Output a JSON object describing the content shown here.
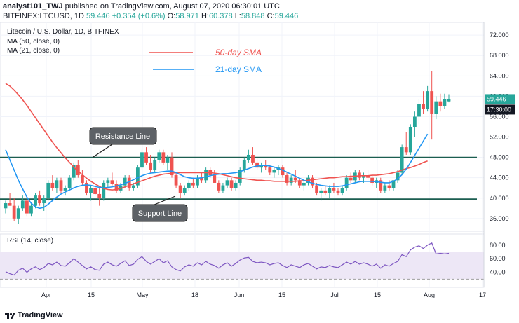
{
  "header": {
    "line1_author": "analyst101_TWJ",
    "line1_text": "published on TradingView.com, August 07, 2020 06:30:01 UTC",
    "symbol": "BITFINEX:LTCUSD, 1D",
    "last": "59.446",
    "change": "+0.354 (+0.6%)",
    "o_label": "O:",
    "o": "58.971",
    "h_label": "H:",
    "h": "60.378",
    "l_label": "L:",
    "l": "58.848",
    "c_label": "C:",
    "c": "59.446"
  },
  "legend": {
    "title": "Litecoin / U.S. Dollar, 1D, BITFINEX",
    "ma50": "MA (50, close, 0)",
    "ma21": "MA (21, close, 0)",
    "sma50_label": "50-day SMA",
    "sma21_label": "21-day SMA",
    "rsi": "RSI (14, close)"
  },
  "annotations": {
    "resistance": "Resistance Line",
    "support": "Support Line"
  },
  "price_badges": {
    "last": "59.446",
    "timer": "17:30:00"
  },
  "footer": {
    "brand": "TradingView"
  },
  "colors": {
    "up": "#26a69a",
    "down": "#ef5350",
    "sma50": "#ef5350",
    "sma21": "#2196f3",
    "level": "#1b5e50",
    "rsi_line": "#7e57c2",
    "rsi_band": "#ede7f6",
    "badge_last": "#26a69a",
    "badge_timer": "#131722"
  },
  "chart_data": {
    "type": "candlestick",
    "price_axis": [
      "72.000",
      "68.000",
      "64.000",
      "60.000",
      "56.000",
      "52.000",
      "48.000",
      "44.000",
      "40.000",
      "36.000"
    ],
    "price_ticks": [
      72,
      68,
      64,
      60,
      56,
      52,
      48,
      44,
      40,
      36
    ],
    "ylim": [
      33.5,
      74.5
    ],
    "time_axis": [
      "Apr",
      "15",
      "May",
      "18",
      "Jun",
      "15",
      "Jul",
      "15",
      "Aug",
      "17"
    ],
    "time_axis_x": [
      66,
      130,
      203,
      278,
      341,
      402,
      477,
      538,
      612,
      688
    ],
    "levels": {
      "resistance": 48.0,
      "support": 39.8
    },
    "candles": [
      [
        38.0,
        39.5,
        37.0,
        39.0
      ],
      [
        39.0,
        41.0,
        38.5,
        38.5
      ],
      [
        38.5,
        40.0,
        35.5,
        36.0
      ],
      [
        36.0,
        38.5,
        35.0,
        38.0
      ],
      [
        38.0,
        40.5,
        37.5,
        39.5
      ],
      [
        39.5,
        40.0,
        36.5,
        37.0
      ],
      [
        37.0,
        39.0,
        36.5,
        38.5
      ],
      [
        38.5,
        41.0,
        38.0,
        40.5
      ],
      [
        40.5,
        41.5,
        38.5,
        39.0
      ],
      [
        39.0,
        40.5,
        37.5,
        40.0
      ],
      [
        40.0,
        43.5,
        39.5,
        43.0
      ],
      [
        43.0,
        44.5,
        41.5,
        42.0
      ],
      [
        42.0,
        44.0,
        41.0,
        43.5
      ],
      [
        43.5,
        44.0,
        41.0,
        41.5
      ],
      [
        41.5,
        42.5,
        40.5,
        42.0
      ],
      [
        42.0,
        44.5,
        41.5,
        44.0
      ],
      [
        44.0,
        47.0,
        43.5,
        46.5
      ],
      [
        46.5,
        47.5,
        44.0,
        44.5
      ],
      [
        44.5,
        45.5,
        42.5,
        43.0
      ],
      [
        43.0,
        43.5,
        40.5,
        41.0
      ],
      [
        41.0,
        42.5,
        39.5,
        42.0
      ],
      [
        42.0,
        43.0,
        40.5,
        40.8
      ],
      [
        40.8,
        42.0,
        38.5,
        40.0
      ],
      [
        40.0,
        43.5,
        39.5,
        43.0
      ],
      [
        43.0,
        44.0,
        42.0,
        43.5
      ],
      [
        43.5,
        45.0,
        42.5,
        42.8
      ],
      [
        42.8,
        43.5,
        41.0,
        41.5
      ],
      [
        41.5,
        43.0,
        41.0,
        42.5
      ],
      [
        42.5,
        44.5,
        42.0,
        44.0
      ],
      [
        44.0,
        44.5,
        41.5,
        42.0
      ],
      [
        42.0,
        43.0,
        41.5,
        42.5
      ],
      [
        42.5,
        46.5,
        42.0,
        46.0
      ],
      [
        46.0,
        49.5,
        45.5,
        49.0
      ],
      [
        49.0,
        50.0,
        46.5,
        47.0
      ],
      [
        47.0,
        48.5,
        45.0,
        45.5
      ],
      [
        45.5,
        48.0,
        45.0,
        47.5
      ],
      [
        47.5,
        49.5,
        47.0,
        49.0
      ],
      [
        49.0,
        49.5,
        46.5,
        47.0
      ],
      [
        47.0,
        48.5,
        45.5,
        48.0
      ],
      [
        48.0,
        49.0,
        44.0,
        44.5
      ],
      [
        44.5,
        45.0,
        42.0,
        42.5
      ],
      [
        42.5,
        43.0,
        40.0,
        41.0
      ],
      [
        41.0,
        42.5,
        40.5,
        42.0
      ],
      [
        42.0,
        43.5,
        41.5,
        43.0
      ],
      [
        43.0,
        44.0,
        42.0,
        42.5
      ],
      [
        42.5,
        44.5,
        42.0,
        44.0
      ],
      [
        44.0,
        45.0,
        43.0,
        43.5
      ],
      [
        43.5,
        46.0,
        43.0,
        45.5
      ],
      [
        45.5,
        46.0,
        44.0,
        44.5
      ],
      [
        44.5,
        45.5,
        43.0,
        43.0
      ],
      [
        43.0,
        43.5,
        41.0,
        41.5
      ],
      [
        41.5,
        43.0,
        41.0,
        42.5
      ],
      [
        42.5,
        44.0,
        42.0,
        43.5
      ],
      [
        43.5,
        44.0,
        41.5,
        42.0
      ],
      [
        42.0,
        43.5,
        41.5,
        43.0
      ],
      [
        43.0,
        46.0,
        42.5,
        45.5
      ],
      [
        45.5,
        48.0,
        45.0,
        47.5
      ],
      [
        47.5,
        49.5,
        47.0,
        48.5
      ],
      [
        48.5,
        50.0,
        46.5,
        47.0
      ],
      [
        47.0,
        48.0,
        45.5,
        46.0
      ],
      [
        46.0,
        47.0,
        45.0,
        46.5
      ],
      [
        46.5,
        47.5,
        45.5,
        46.0
      ],
      [
        46.0,
        46.5,
        44.5,
        45.0
      ],
      [
        45.0,
        46.0,
        44.0,
        45.5
      ],
      [
        45.5,
        46.5,
        44.5,
        46.0
      ],
      [
        46.0,
        46.5,
        44.0,
        44.5
      ],
      [
        44.5,
        45.0,
        42.5,
        43.0
      ],
      [
        43.0,
        44.5,
        42.5,
        44.0
      ],
      [
        44.0,
        45.5,
        43.0,
        43.5
      ],
      [
        43.5,
        44.0,
        42.0,
        42.5
      ],
      [
        42.5,
        43.5,
        41.5,
        43.0
      ],
      [
        43.0,
        44.5,
        42.5,
        44.0
      ],
      [
        44.0,
        44.5,
        42.0,
        42.5
      ],
      [
        42.5,
        43.0,
        40.5,
        41.0
      ],
      [
        41.0,
        42.0,
        39.5,
        41.5
      ],
      [
        41.5,
        42.5,
        40.5,
        41.0
      ],
      [
        41.0,
        42.5,
        40.0,
        42.0
      ],
      [
        42.0,
        43.0,
        41.0,
        41.5
      ],
      [
        41.5,
        42.0,
        40.5,
        41.0
      ],
      [
        41.0,
        42.5,
        40.5,
        42.0
      ],
      [
        42.0,
        44.5,
        41.5,
        44.0
      ],
      [
        44.0,
        45.0,
        43.0,
        43.5
      ],
      [
        43.5,
        45.5,
        43.0,
        45.0
      ],
      [
        45.0,
        45.5,
        43.5,
        44.0
      ],
      [
        44.0,
        45.0,
        43.0,
        44.5
      ],
      [
        44.5,
        45.5,
        43.5,
        44.0
      ],
      [
        44.0,
        44.5,
        42.5,
        43.0
      ],
      [
        43.0,
        44.0,
        42.0,
        43.5
      ],
      [
        43.5,
        44.0,
        41.0,
        41.5
      ],
      [
        41.5,
        43.0,
        41.0,
        42.5
      ],
      [
        42.5,
        43.5,
        41.5,
        42.0
      ],
      [
        42.0,
        43.5,
        41.5,
        43.5
      ],
      [
        43.5,
        45.5,
        43.0,
        45.0
      ],
      [
        45.0,
        50.5,
        44.5,
        50.0
      ],
      [
        50.0,
        53.0,
        48.5,
        49.0
      ],
      [
        49.0,
        54.5,
        48.5,
        54.0
      ],
      [
        54.0,
        57.0,
        52.0,
        56.0
      ],
      [
        56.0,
        59.5,
        54.5,
        58.5
      ],
      [
        58.5,
        61.0,
        56.5,
        57.5
      ],
      [
        57.5,
        62.0,
        57.0,
        61.0
      ],
      [
        61.0,
        65.0,
        51.5,
        56.5
      ],
      [
        56.5,
        60.0,
        55.5,
        59.0
      ],
      [
        59.0,
        60.5,
        57.0,
        58.0
      ],
      [
        58.0,
        60.5,
        57.5,
        59.5
      ],
      [
        59.0,
        60.4,
        58.8,
        59.4
      ]
    ],
    "sma50": [
      [
        62.5
      ],
      [
        62.0
      ],
      [
        61.2
      ],
      [
        60.3
      ],
      [
        59.3
      ],
      [
        58.2
      ],
      [
        57.0
      ],
      [
        55.8
      ],
      [
        54.6
      ],
      [
        53.4
      ],
      [
        52.2
      ],
      [
        51.0
      ],
      [
        49.9
      ],
      [
        48.9
      ],
      [
        47.9
      ],
      [
        47.0
      ],
      [
        46.1
      ],
      [
        45.3
      ],
      [
        44.6
      ],
      [
        43.9
      ],
      [
        43.3
      ],
      [
        42.8
      ],
      [
        42.3
      ],
      [
        41.9
      ],
      [
        41.7
      ],
      [
        41.6
      ],
      [
        41.7
      ],
      [
        41.9
      ],
      [
        42.2
      ],
      [
        42.5
      ],
      [
        42.8
      ],
      [
        43.1
      ],
      [
        43.4
      ],
      [
        43.7
      ],
      [
        44.0
      ],
      [
        44.3
      ],
      [
        44.5
      ],
      [
        44.7
      ],
      [
        44.8
      ],
      [
        44.9
      ],
      [
        45.0
      ],
      [
        45.0
      ],
      [
        45.0
      ],
      [
        45.0
      ],
      [
        45.0
      ],
      [
        45.0
      ],
      [
        45.0
      ],
      [
        45.0
      ],
      [
        45.0
      ],
      [
        44.9
      ],
      [
        44.8
      ],
      [
        44.6
      ],
      [
        44.4
      ],
      [
        44.2
      ],
      [
        44.0
      ],
      [
        43.9
      ],
      [
        43.8
      ],
      [
        43.7
      ],
      [
        43.6
      ],
      [
        43.5
      ],
      [
        43.5
      ],
      [
        43.4
      ],
      [
        43.4
      ],
      [
        43.3
      ],
      [
        43.3
      ],
      [
        43.3
      ],
      [
        43.3
      ],
      [
        43.3
      ],
      [
        43.3
      ],
      [
        43.4
      ],
      [
        43.4
      ],
      [
        43.5
      ],
      [
        43.6
      ],
      [
        43.7
      ],
      [
        43.8
      ],
      [
        43.9
      ],
      [
        44.0
      ],
      [
        44.0
      ],
      [
        44.1
      ],
      [
        44.2
      ],
      [
        44.2
      ],
      [
        44.3
      ],
      [
        44.3
      ],
      [
        44.4
      ],
      [
        44.4
      ],
      [
        44.4
      ],
      [
        44.5
      ],
      [
        44.5
      ],
      [
        44.6
      ],
      [
        44.7
      ],
      [
        44.8
      ],
      [
        45.0
      ],
      [
        45.2
      ],
      [
        45.5
      ],
      [
        45.8
      ],
      [
        46.0
      ],
      [
        46.3
      ],
      [
        46.6
      ],
      [
        47.0
      ],
      [
        47.3
      ]
    ],
    "sma21": [
      [
        49.5
      ],
      [
        47.5
      ],
      [
        45.5
      ],
      [
        43.5
      ],
      [
        41.8
      ],
      [
        40.2
      ],
      [
        39.0
      ],
      [
        38.3
      ],
      [
        38.0
      ],
      [
        38.2
      ],
      [
        38.8
      ],
      [
        39.5
      ],
      [
        40.2
      ],
      [
        40.8
      ],
      [
        41.2
      ],
      [
        41.6
      ],
      [
        42.0
      ],
      [
        42.3
      ],
      [
        42.5
      ],
      [
        42.6
      ],
      [
        42.5
      ],
      [
        42.3
      ],
      [
        42.1
      ],
      [
        42.0
      ],
      [
        42.1
      ],
      [
        42.2
      ],
      [
        42.4
      ],
      [
        42.6
      ],
      [
        42.9
      ],
      [
        43.2
      ],
      [
        43.6
      ],
      [
        44.0
      ],
      [
        44.4
      ],
      [
        44.7
      ],
      [
        44.9
      ],
      [
        45.0
      ],
      [
        45.1
      ],
      [
        45.2
      ],
      [
        45.3
      ],
      [
        45.3
      ],
      [
        45.0
      ],
      [
        44.6
      ],
      [
        44.2
      ],
      [
        44.0
      ],
      [
        43.9
      ],
      [
        43.9
      ],
      [
        44.0
      ],
      [
        44.2
      ],
      [
        44.4
      ],
      [
        44.6
      ],
      [
        44.7
      ],
      [
        44.8
      ],
      [
        44.8
      ],
      [
        44.9
      ],
      [
        45.0
      ],
      [
        45.2
      ],
      [
        45.5
      ],
      [
        45.8
      ],
      [
        46.1
      ],
      [
        46.3
      ],
      [
        46.4
      ],
      [
        46.4
      ],
      [
        46.3
      ],
      [
        46.1
      ],
      [
        45.8
      ],
      [
        45.5
      ],
      [
        45.1
      ],
      [
        44.7
      ],
      [
        44.3
      ],
      [
        43.9
      ],
      [
        43.5
      ],
      [
        43.2
      ],
      [
        42.9
      ],
      [
        42.7
      ],
      [
        42.5
      ],
      [
        42.4
      ],
      [
        42.3
      ],
      [
        42.3
      ],
      [
        42.3
      ],
      [
        42.4
      ],
      [
        42.6
      ],
      [
        42.8
      ],
      [
        43.0
      ],
      [
        43.2
      ],
      [
        43.3
      ],
      [
        43.3
      ],
      [
        43.3
      ],
      [
        43.2
      ],
      [
        43.1
      ],
      [
        43.0
      ],
      [
        43.0
      ],
      [
        43.3
      ],
      [
        43.8
      ],
      [
        44.6
      ],
      [
        45.7
      ],
      [
        47.0
      ],
      [
        48.4
      ],
      [
        49.8
      ],
      [
        51.2
      ],
      [
        52.6
      ]
    ],
    "rsi_axis": [
      "80.00",
      "60.00",
      "40.00"
    ],
    "rsi_ticks": [
      80,
      60,
      40
    ],
    "rsi_band": [
      70,
      30
    ],
    "rsi": [
      41,
      38,
      36,
      43,
      46,
      40,
      45,
      48,
      44,
      47,
      53,
      51,
      55,
      50,
      49,
      54,
      60,
      55,
      50,
      45,
      48,
      44,
      43,
      52,
      55,
      51,
      49,
      53,
      57,
      50,
      52,
      59,
      63,
      56,
      52,
      56,
      60,
      54,
      57,
      48,
      44,
      42,
      48,
      51,
      49,
      54,
      51,
      56,
      52,
      50,
      46,
      51,
      54,
      49,
      53,
      58,
      61,
      62,
      56,
      54,
      55,
      54,
      51,
      53,
      54,
      50,
      47,
      51,
      49,
      47,
      51,
      53,
      49,
      45,
      48,
      47,
      50,
      48,
      47,
      51,
      55,
      52,
      56,
      52,
      54,
      52,
      49,
      52,
      46,
      51,
      49,
      53,
      56,
      66,
      63,
      73,
      77,
      79,
      75,
      80,
      83,
      67,
      68,
      67,
      68
    ]
  }
}
